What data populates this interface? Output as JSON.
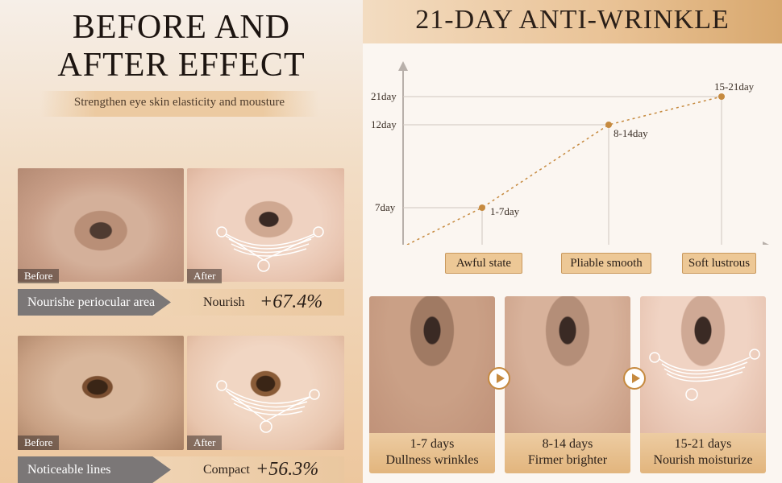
{
  "left": {
    "title_line1": "BEFORE AND",
    "title_line2": "AFTER EFFECT",
    "subtitle": "Strengthen eye skin elasticity and mousture",
    "panel1": {
      "before_label": "Before",
      "after_label": "After",
      "bar_label": "Nourishe periocular area",
      "bar_word": "Nourish",
      "bar_value": "+67.4%"
    },
    "panel2": {
      "before_label": "Before",
      "after_label": "After",
      "bar_label": "Noticeable lines",
      "bar_word": "Compact",
      "bar_value": "+56.3%"
    }
  },
  "right": {
    "title": "21-DAY ANTI-WRINKLE",
    "chart": {
      "y_ticks": [
        "21day",
        "12day",
        "7day"
      ],
      "points": [
        {
          "label": "1-7day",
          "y": 7
        },
        {
          "label": "8-14day",
          "y": 12
        },
        {
          "label": "15-21day",
          "y": 21
        }
      ],
      "stages": [
        "Awful state",
        "Pliable smooth",
        "Soft lustrous"
      ]
    },
    "cards": [
      {
        "days": "1-7 days",
        "desc": "Dullness wrinkles"
      },
      {
        "days": "8-14 days",
        "desc": "Firmer brighter"
      },
      {
        "days": "15-21 days",
        "desc": "Nourish moisturize"
      }
    ]
  },
  "colors": {
    "accent": "#c68a3f",
    "bar_gray": "#7b7777"
  }
}
